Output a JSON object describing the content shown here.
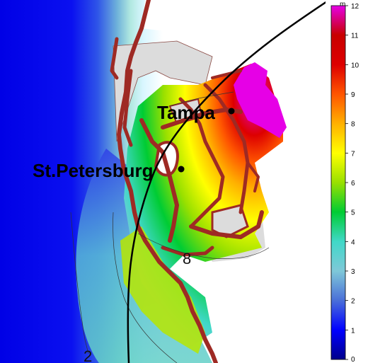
{
  "map": {
    "cities": [
      {
        "id": "tampa",
        "label": "Tampa"
      },
      {
        "id": "st-petersburg",
        "label": "St.Petersburg"
      }
    ],
    "contour_labels": [
      "8",
      "2"
    ]
  },
  "legend": {
    "unit": "m",
    "min": 0,
    "max": 12,
    "ticks": [
      "0",
      "1",
      "2",
      "3",
      "4",
      "5",
      "6",
      "7",
      "8",
      "9",
      "10",
      "11",
      "12"
    ],
    "colors": [
      "#00008b",
      "#0000ff",
      "#4a6fd8",
      "#7fc8d8",
      "#40d8c8",
      "#00cc33",
      "#99e000",
      "#ffff00",
      "#ffb000",
      "#ff5500",
      "#dd0000",
      "#c80000",
      "#e600e6"
    ]
  },
  "colors": {
    "land": "#ffffff",
    "coast": "#9e2a24",
    "unflooded": "#dcdcdc",
    "track": "#000000"
  }
}
